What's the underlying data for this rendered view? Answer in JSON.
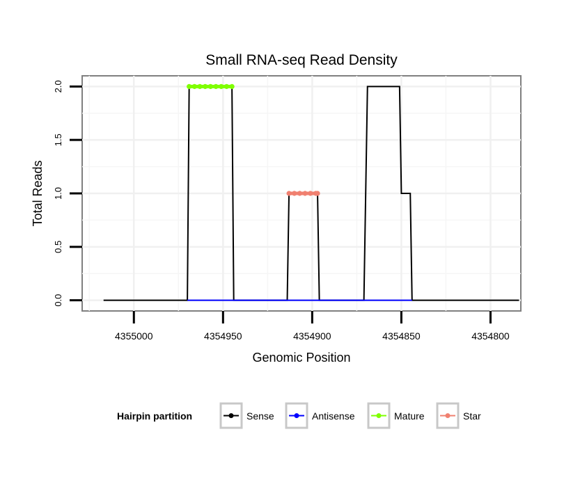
{
  "chart_data": {
    "type": "line",
    "title": "Small RNA-seq Read Density",
    "xlabel": "Genomic Position",
    "ylabel": "Total Reads",
    "x_reversed": true,
    "xlim": [
      4355029,
      4354783
    ],
    "ylim": [
      -0.1,
      2.1
    ],
    "x_ticks": [
      4355000,
      4354950,
      4354900,
      4354850,
      4354800
    ],
    "x_tick_labels": [
      "4355000",
      "4354950",
      "4354900",
      "4354850",
      "4354800"
    ],
    "y_ticks": [
      0,
      0.5,
      1,
      1.5,
      2
    ],
    "y_tick_labels": [
      "0.0",
      "0.5",
      "1.0",
      "1.5",
      "2.0"
    ],
    "grid": true,
    "legend_position": "bottom",
    "legend_title": "Hairpin partition",
    "series": [
      {
        "name": "Sense",
        "color": "#000000",
        "marker": false,
        "points": [
          [
            4355017,
            0
          ],
          [
            4354970,
            0
          ],
          [
            4354969,
            2
          ],
          [
            4354945,
            2
          ],
          [
            4354944,
            0
          ],
          [
            4354914,
            0
          ],
          [
            4354913,
            1
          ],
          [
            4354897,
            1
          ],
          [
            4354896,
            0
          ],
          [
            4354871,
            0
          ],
          [
            4354869,
            2
          ],
          [
            4354851,
            2
          ],
          [
            4354850,
            1
          ],
          [
            4354845,
            1
          ],
          [
            4354844,
            0
          ],
          [
            4354800,
            0
          ],
          [
            4354784,
            0
          ]
        ]
      },
      {
        "name": "Antisense",
        "color": "#0000ff",
        "marker": false,
        "points": [
          [
            4354970,
            0
          ],
          [
            4354944,
            0
          ],
          [
            4354914,
            0
          ],
          [
            4354896,
            0
          ],
          [
            4354871,
            0
          ],
          [
            4354844,
            0
          ]
        ]
      },
      {
        "name": "Mature",
        "color": "#7fff00",
        "marker": true,
        "points": [
          [
            4354969,
            2
          ],
          [
            4354966,
            2
          ],
          [
            4354963,
            2
          ],
          [
            4354960,
            2
          ],
          [
            4354957,
            2
          ],
          [
            4354954,
            2
          ],
          [
            4354951,
            2
          ],
          [
            4354948,
            2
          ],
          [
            4354945,
            2
          ]
        ]
      },
      {
        "name": "Star",
        "color": "#f08070",
        "marker": true,
        "points": [
          [
            4354913,
            1
          ],
          [
            4354910,
            1
          ],
          [
            4354907,
            1
          ],
          [
            4354904,
            1
          ],
          [
            4354901,
            1
          ],
          [
            4354898,
            1
          ],
          [
            4354897,
            1
          ]
        ]
      }
    ]
  }
}
